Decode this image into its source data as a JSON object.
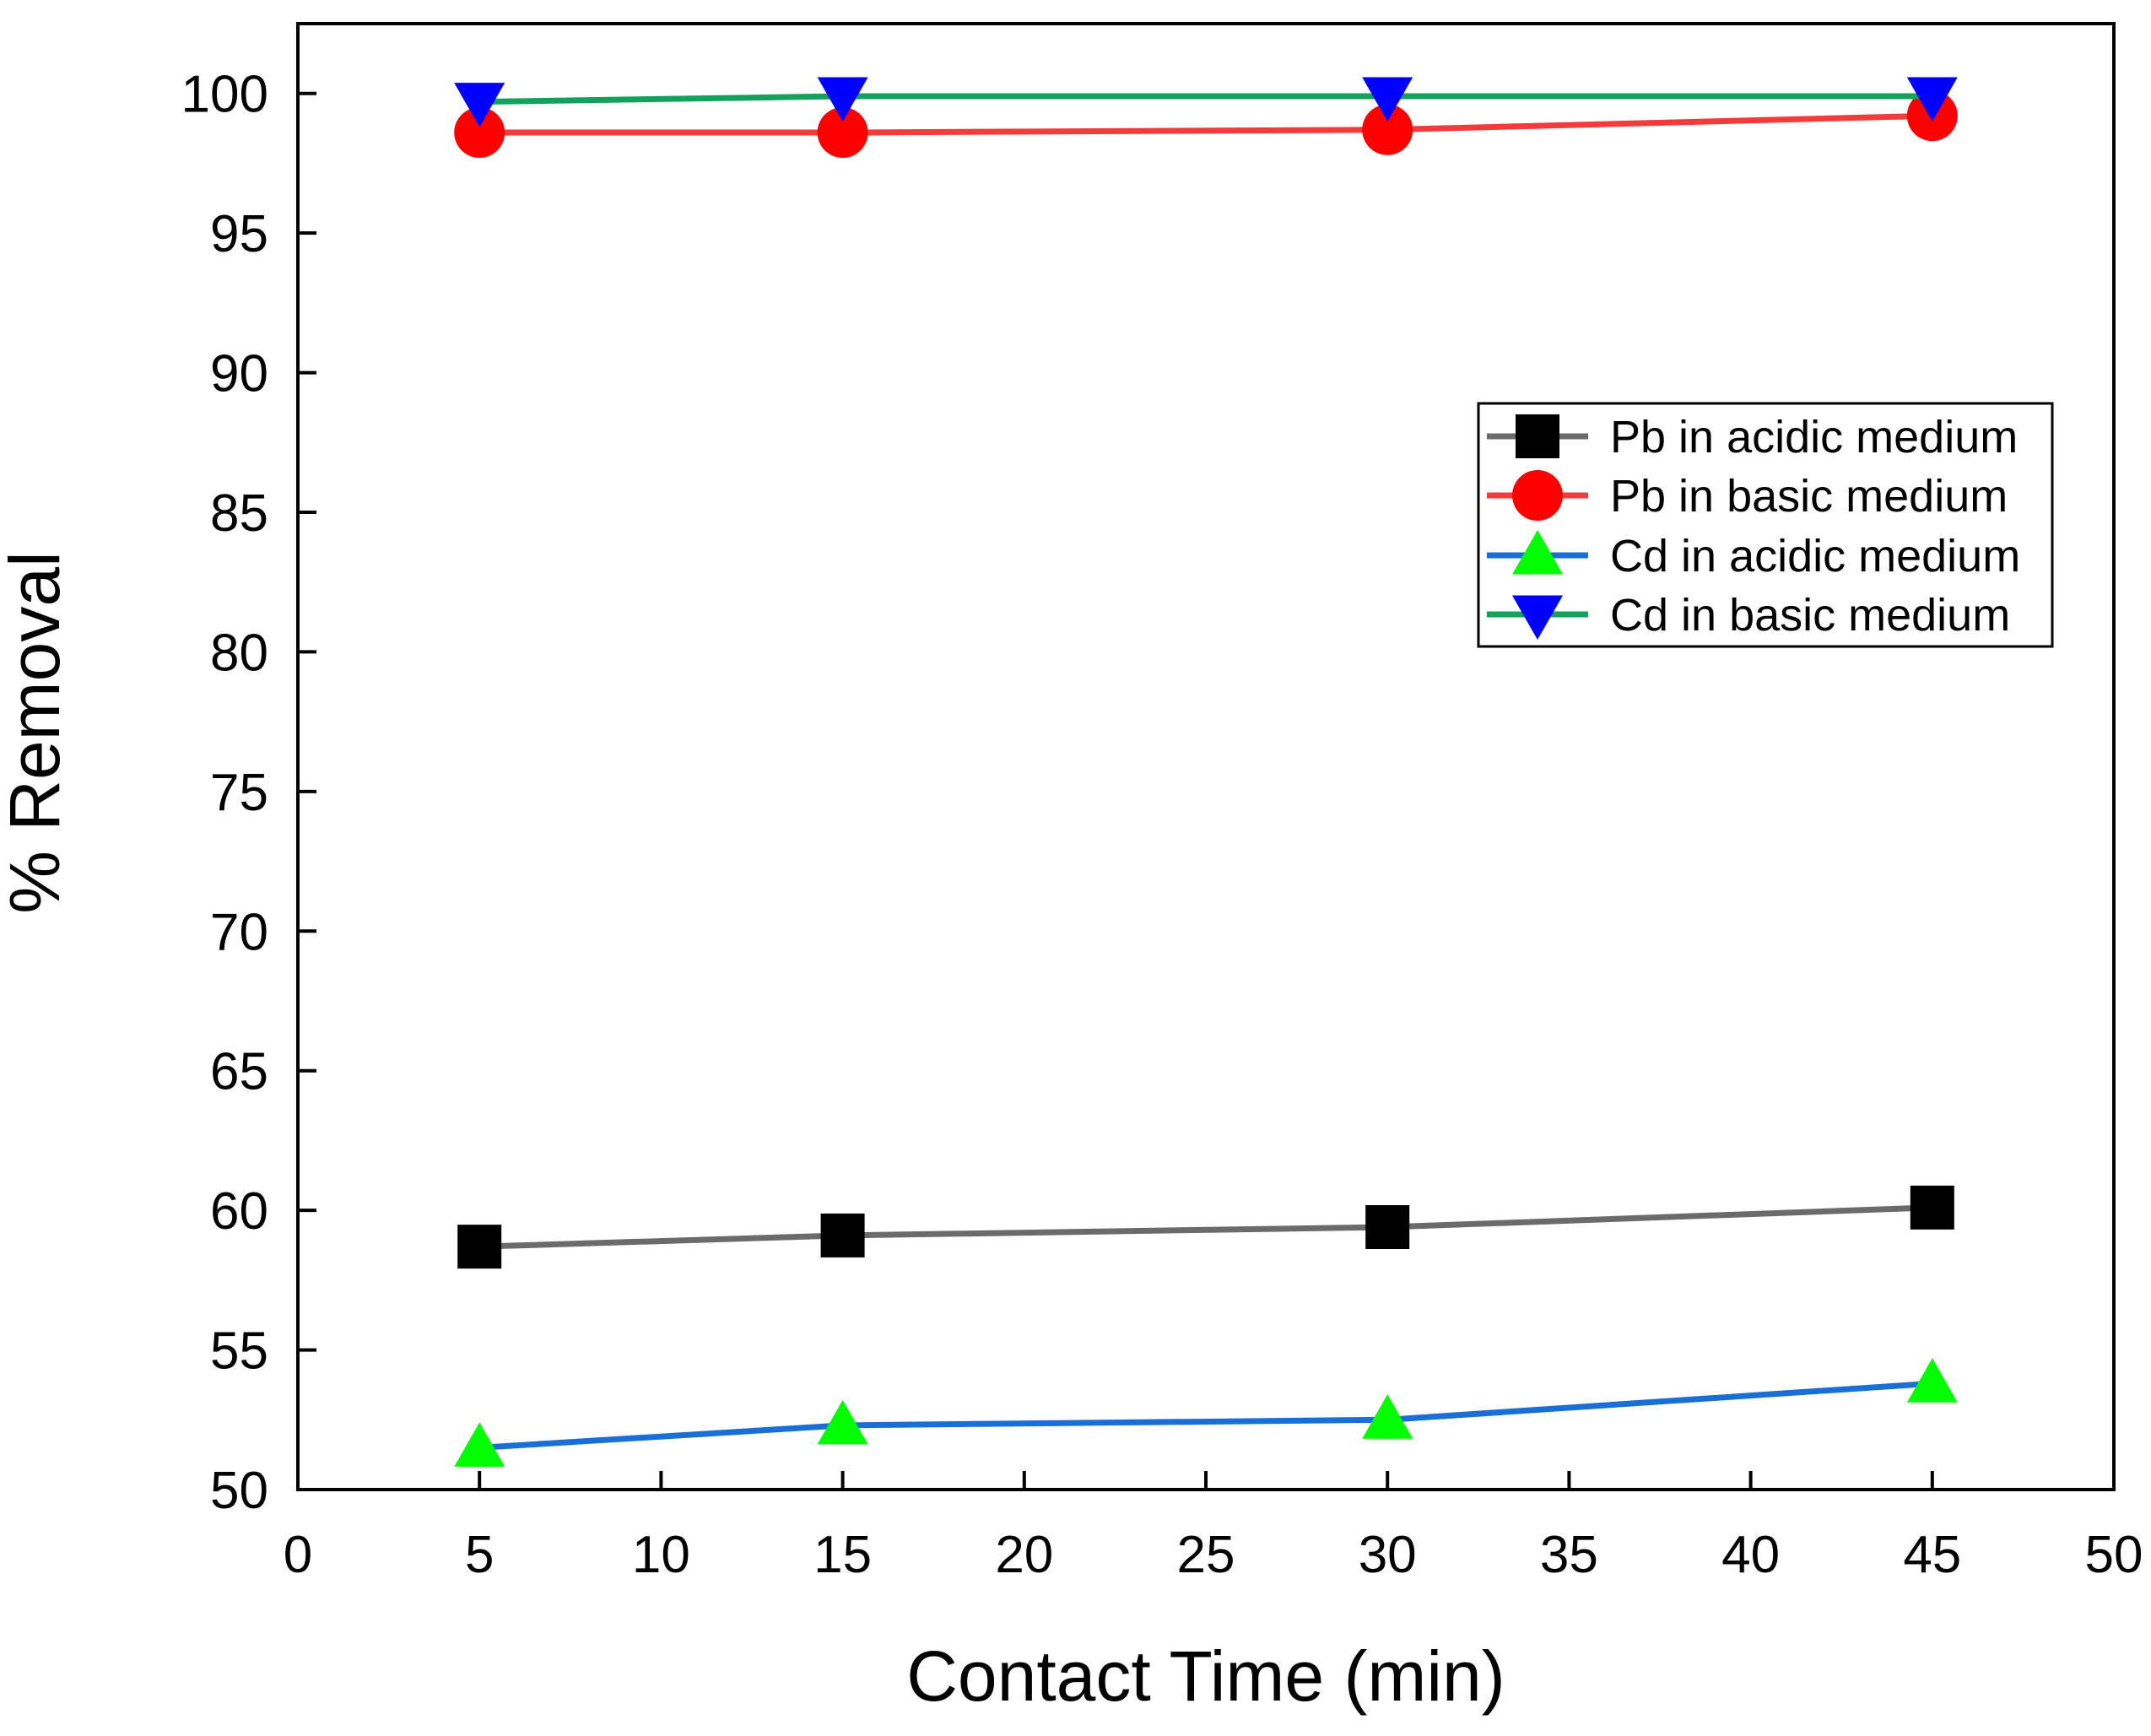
{
  "chart_data": {
    "type": "line",
    "title": "",
    "xlabel": "Contact Time (min)",
    "ylabel": "% Removal",
    "xlim": [
      0,
      50
    ],
    "ylim": [
      50,
      102.5
    ],
    "x_ticks": [
      0,
      5,
      10,
      15,
      20,
      25,
      30,
      35,
      40,
      45,
      50
    ],
    "y_ticks": [
      50,
      55,
      60,
      65,
      70,
      75,
      80,
      85,
      90,
      95,
      100
    ],
    "x_tick_labels": [
      "0",
      "5",
      "10",
      "15",
      "20",
      "25",
      "30",
      "35",
      "40",
      "45",
      "50"
    ],
    "y_tick_labels": [
      "50",
      "55",
      "60",
      "65",
      "70",
      "75",
      "80",
      "85",
      "90",
      "95",
      "100"
    ],
    "grid": false,
    "legend_position": "right",
    "x": [
      5,
      15,
      30,
      45
    ],
    "series": [
      {
        "name": "Pb in acidic medium",
        "values": [
          58.7,
          59.1,
          59.4,
          60.1
        ],
        "line_color": "#6b6b6b",
        "marker_color": "#000000",
        "marker": "square"
      },
      {
        "name": "Pb in basic medium",
        "values": [
          98.6,
          98.6,
          98.7,
          99.2
        ],
        "line_color": "#f23b3b",
        "marker_color": "#ff0000",
        "marker": "circle"
      },
      {
        "name": "Cd in acidic medium",
        "values": [
          51.5,
          52.3,
          52.5,
          53.8
        ],
        "line_color": "#1a6fd6",
        "marker_color": "#00ff00",
        "marker": "triangle-up"
      },
      {
        "name": "Cd in basic medium",
        "values": [
          99.7,
          99.9,
          99.9,
          99.9
        ],
        "line_color": "#13a15c",
        "marker_color": "#0000ff",
        "marker": "triangle-down"
      }
    ]
  }
}
